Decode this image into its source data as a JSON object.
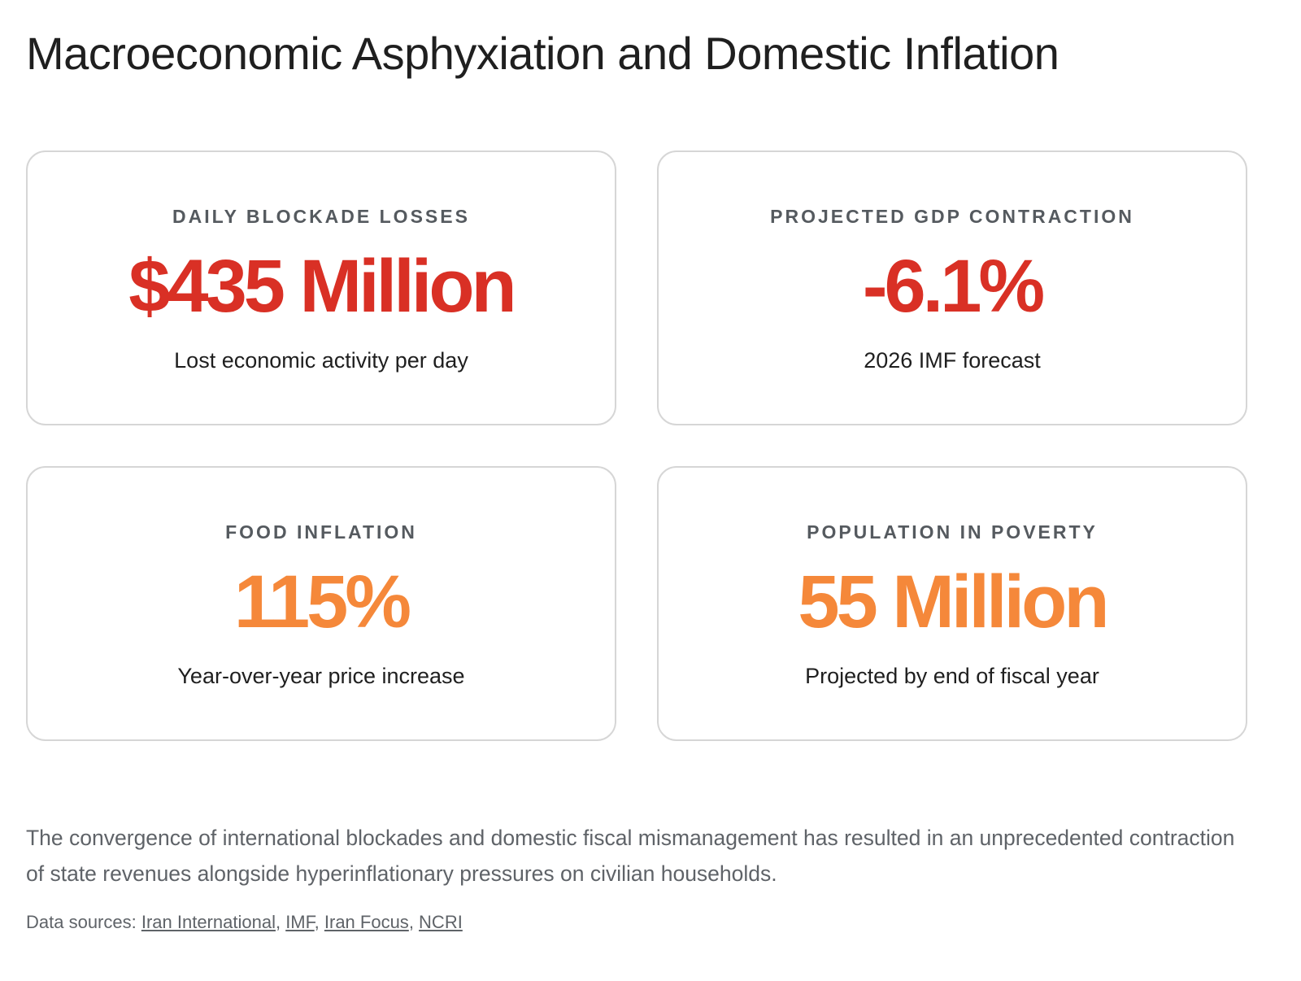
{
  "title": "Macroeconomic Asphyxiation and Domestic Inflation",
  "colors": {
    "severe": "#d93025",
    "warning": "#f5883a",
    "label": "#555a5f",
    "border": "#d6d6d6"
  },
  "cards": [
    {
      "label": "DAILY BLOCKADE LOSSES",
      "value": "$435 Million",
      "description": "Lost economic activity per day",
      "value_color": "#d93025"
    },
    {
      "label": "PROJECTED GDP CONTRACTION",
      "value": "-6.1%",
      "description": "2026 IMF forecast",
      "value_color": "#d93025"
    },
    {
      "label": "FOOD INFLATION",
      "value": "115%",
      "description": "Year-over-year price increase",
      "value_color": "#f5883a"
    },
    {
      "label": "POPULATION IN POVERTY",
      "value": "55 Million",
      "description": "Projected by end of fiscal year",
      "value_color": "#f5883a"
    }
  ],
  "summary": "The convergence of international blockades and domestic fiscal mismanagement has resulted in an unprecedented contraction of state revenues alongside hyperinflationary pressures on civilian households.",
  "sources": {
    "prefix": "Data sources: ",
    "links": [
      "Iran International",
      "IMF",
      "Iran Focus",
      "NCRI"
    ],
    "separator": ", "
  }
}
